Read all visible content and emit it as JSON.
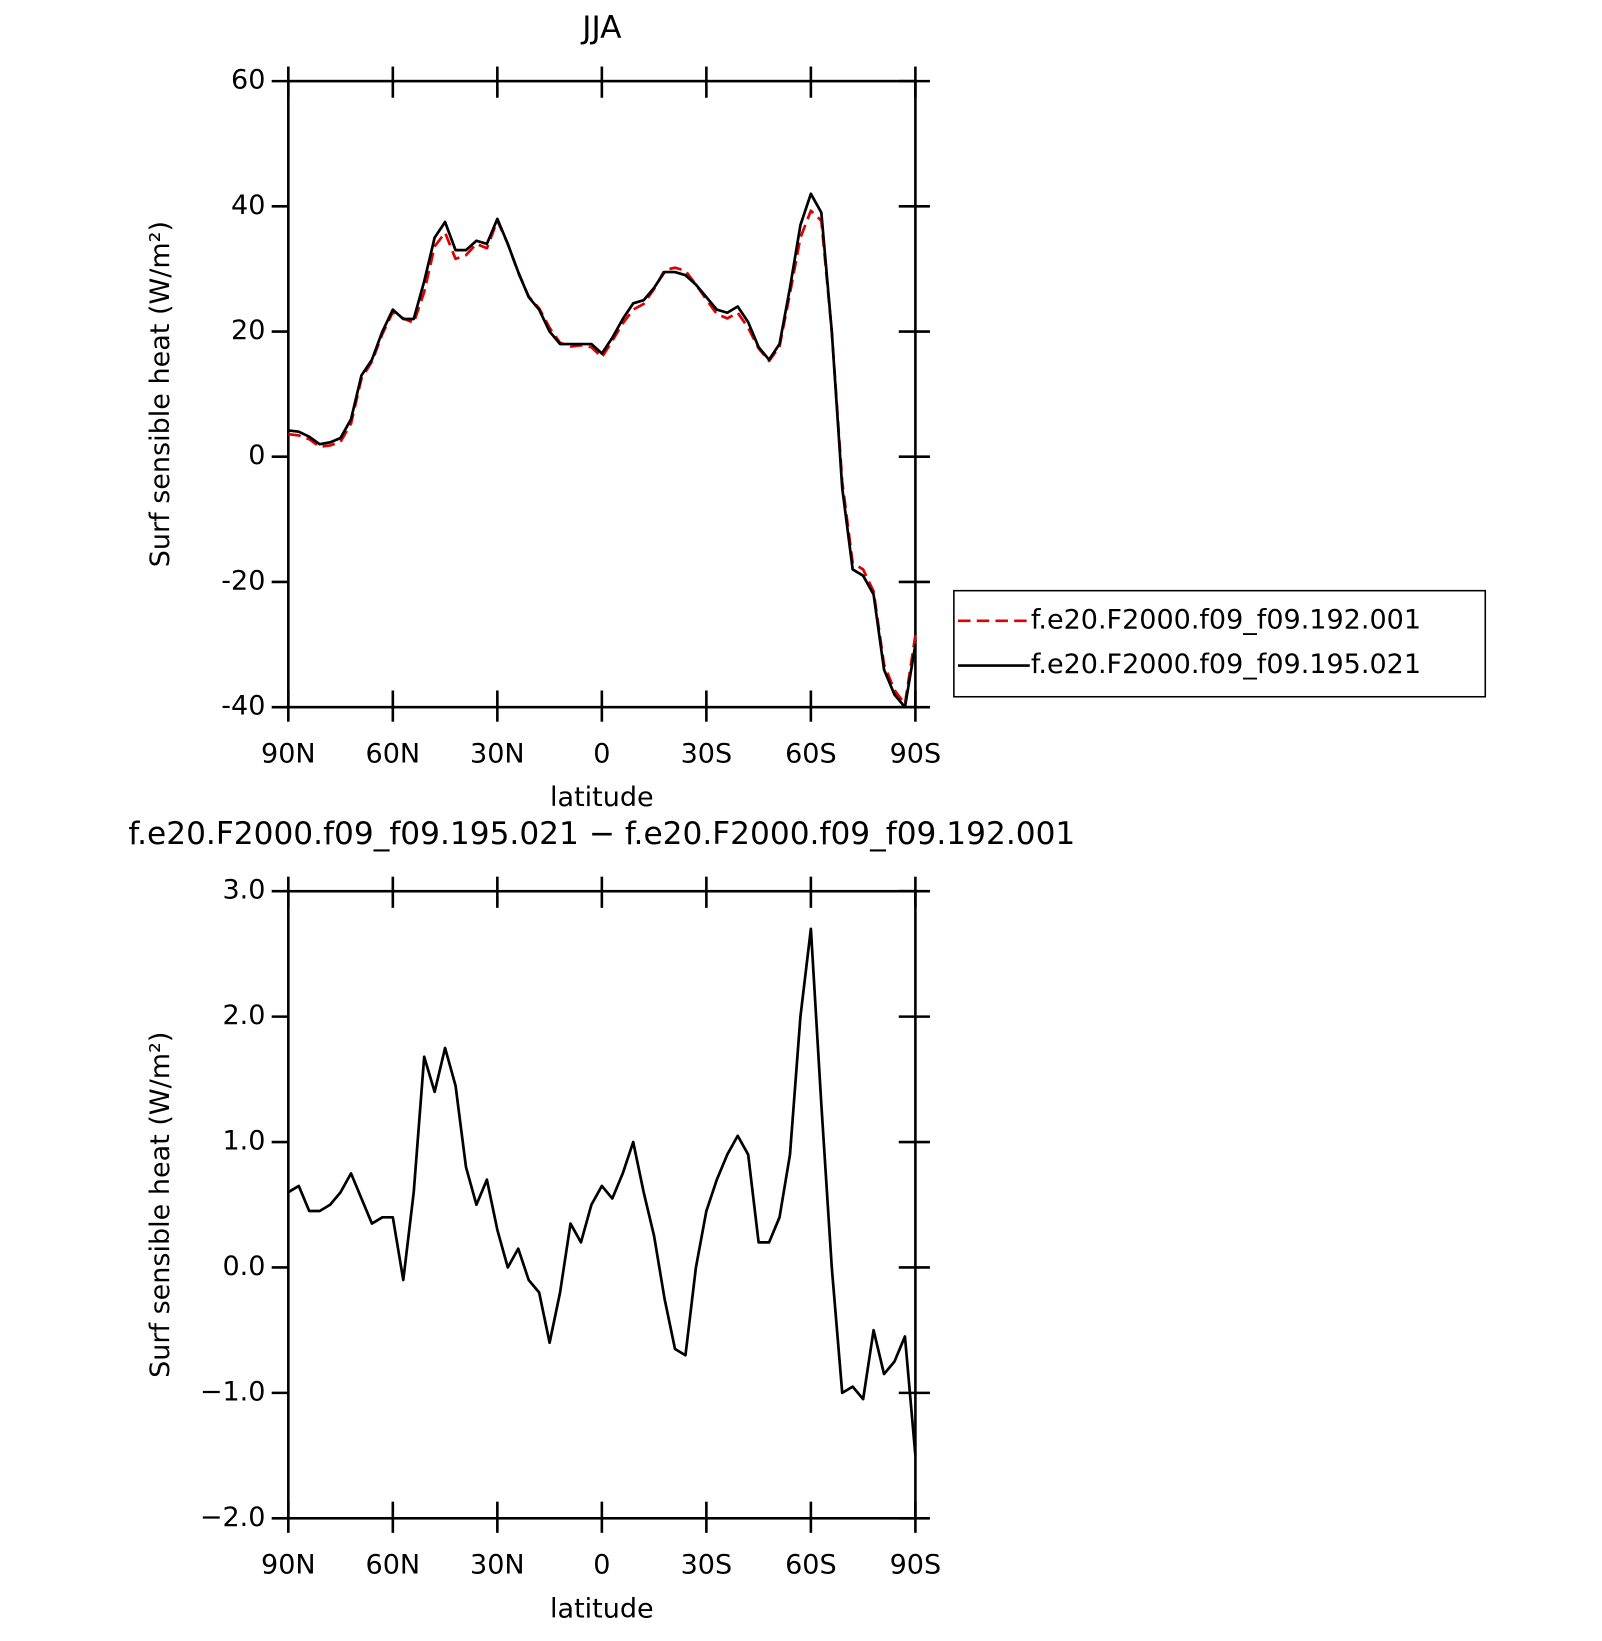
{
  "chart_data": [
    {
      "type": "line",
      "title": "JJA",
      "xlabel": "latitude",
      "ylabel": "Surf sensible heat (W/m²)",
      "x": [
        90,
        87,
        84,
        81,
        78,
        75,
        72,
        69,
        66,
        63,
        60,
        57,
        54,
        51,
        48,
        45,
        42,
        39,
        36,
        33,
        30,
        27,
        24,
        21,
        18,
        15,
        12,
        9,
        6,
        3,
        0,
        -3,
        -6,
        -9,
        -12,
        -15,
        -18,
        -21,
        -24,
        -27,
        -30,
        -33,
        -36,
        -39,
        -42,
        -45,
        -48,
        -51,
        -54,
        -57,
        -60,
        -63,
        -66,
        -69,
        -72,
        -75,
        -78,
        -81,
        -84,
        -87,
        -90
      ],
      "series": [
        {
          "name": "f.e20.F2000.f09_f09.192.001",
          "color": "#e00000",
          "dashed": true,
          "values": [
            3.6,
            3.4,
            2.8,
            1.6,
            1.8,
            2.4,
            5.3,
            12.5,
            15.2,
            19.6,
            23.1,
            22.1,
            21.4,
            26.3,
            33.6,
            35.8,
            31.6,
            32.2,
            34,
            33.3,
            37.7,
            34,
            29.4,
            25.6,
            23.7,
            20.6,
            18.2,
            17.6,
            17.8,
            17.5,
            15.9,
            18.5,
            21.3,
            23.5,
            24.4,
            26.8,
            29.8,
            30.2,
            29.7,
            27.5,
            25.1,
            22.8,
            22.1,
            23,
            20.6,
            17.3,
            15.3,
            17.6,
            26.1,
            35,
            39.3,
            37.7,
            20,
            -4,
            -17,
            -18,
            -21.5,
            -33.2,
            -37.3,
            -39.5,
            -28.5
          ]
        },
        {
          "name": "f.e20.F2000.f09_f09.195.021",
          "color": "#000000",
          "dashed": false,
          "values": [
            4.2,
            4,
            3.2,
            2,
            2.3,
            3,
            6,
            13,
            15.5,
            20,
            23.5,
            22,
            22,
            28,
            35,
            37.5,
            33,
            33,
            34.5,
            34,
            38,
            34,
            29.5,
            25.5,
            23.5,
            20,
            18,
            18,
            18,
            18,
            16.5,
            19,
            22,
            24.5,
            25,
            27,
            29.5,
            29.5,
            29,
            27.5,
            25.5,
            23.5,
            23,
            24,
            21.5,
            17.5,
            15.5,
            18,
            27,
            37,
            42,
            39,
            20,
            -5,
            -18,
            -19,
            -22,
            -34,
            -38,
            -40,
            -30
          ]
        }
      ],
      "xlim": [
        90,
        -90
      ],
      "xticks": [
        {
          "value": 90,
          "label": "90N"
        },
        {
          "value": 60,
          "label": "60N"
        },
        {
          "value": 30,
          "label": "30N"
        },
        0,
        {
          "value": -30,
          "label": "30S"
        },
        {
          "value": -60,
          "label": "60S"
        },
        {
          "value": -90,
          "label": "90S"
        }
      ],
      "ylim": [
        -40,
        60
      ],
      "yticks": [
        -40,
        -20,
        0,
        20,
        40,
        60
      ],
      "legend": "right"
    },
    {
      "type": "line",
      "title": "f.e20.F2000.f09_f09.195.021 − f.e20.F2000.f09_f09.192.001",
      "xlabel": "latitude",
      "ylabel": "Surf sensible heat (W/m²)",
      "x": [
        90,
        87,
        84,
        81,
        78,
        75,
        72,
        69,
        66,
        63,
        60,
        57,
        54,
        51,
        48,
        45,
        42,
        39,
        36,
        33,
        30,
        27,
        24,
        21,
        18,
        15,
        12,
        9,
        6,
        3,
        0,
        -3,
        -6,
        -9,
        -12,
        -15,
        -18,
        -21,
        -24,
        -27,
        -30,
        -33,
        -36,
        -39,
        -42,
        -45,
        -48,
        -51,
        -54,
        -57,
        -60,
        -63,
        -66,
        -69,
        -72,
        -75,
        -78,
        -81,
        -84,
        -87,
        -90
      ],
      "color": "#000000",
      "values": [
        0.6,
        0.65,
        0.45,
        0.45,
        0.5,
        0.6,
        0.75,
        0.55,
        0.35,
        0.4,
        0.4,
        -0.1,
        0.6,
        1.68,
        1.4,
        1.75,
        1.45,
        0.8,
        0.5,
        0.7,
        0.3,
        0,
        0.15,
        -0.1,
        -0.2,
        -0.6,
        -0.2,
        0.35,
        0.2,
        0.5,
        0.65,
        0.55,
        0.75,
        1,
        0.6,
        0.25,
        -0.25,
        -0.65,
        -0.7,
        0,
        0.45,
        0.7,
        0.9,
        1.05,
        0.9,
        0.2,
        0.2,
        0.4,
        0.9,
        2,
        2.7,
        1.3,
        0,
        -1,
        -0.95,
        -1.05,
        -0.5,
        -0.85,
        -0.75,
        -0.55,
        -1.5
      ],
      "xlim": [
        90,
        -90
      ],
      "xticks": [
        {
          "value": 90,
          "label": "90N"
        },
        {
          "value": 60,
          "label": "60N"
        },
        {
          "value": 30,
          "label": "30N"
        },
        0,
        {
          "value": -30,
          "label": "30S"
        },
        {
          "value": -60,
          "label": "60S"
        },
        {
          "value": -90,
          "label": "90S"
        }
      ],
      "ylim": [
        -2,
        3
      ],
      "yticks": [
        {
          "value": -2,
          "label": "−2.0"
        },
        {
          "value": -1,
          "label": "−1.0"
        },
        {
          "value": 0,
          "label": "0.0"
        },
        {
          "value": 1,
          "label": "1.0"
        },
        {
          "value": 2,
          "label": "2.0"
        },
        {
          "value": 3,
          "label": "3.0"
        }
      ]
    }
  ]
}
